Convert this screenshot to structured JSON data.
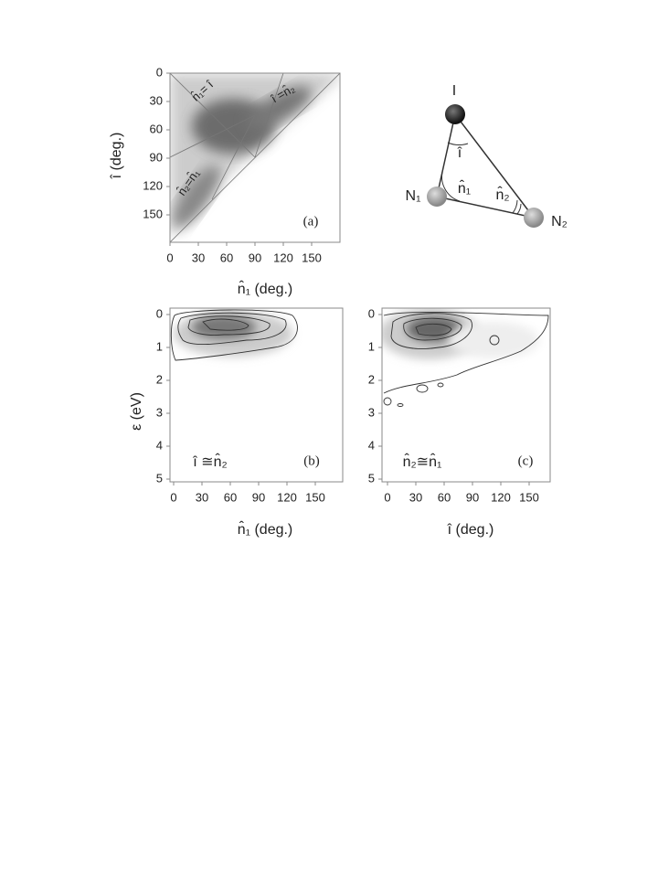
{
  "figure": {
    "panels": [
      {
        "label": "(a)",
        "xlabel": "n̂₁ (deg.)",
        "ylabel": "î (deg.)",
        "xticks": [
          0,
          30,
          60,
          90,
          120,
          150
        ],
        "yticks": [
          0,
          30,
          60,
          90,
          120,
          150
        ],
        "annotations": [
          "n̂₁= î",
          "î =n̂₂",
          "n̂₂=n̂₁"
        ]
      },
      {
        "label": "(b)",
        "xlabel": "n̂₁ (deg.)",
        "ylabel": "ε (eV)",
        "xticks": [
          0,
          30,
          60,
          90,
          120,
          150
        ],
        "yticks": [
          0,
          1,
          2,
          3,
          4,
          5
        ],
        "annotations": [
          "î ≅n̂₂"
        ]
      },
      {
        "label": "(c)",
        "xlabel": "î (deg.)",
        "xticks": [
          0,
          30,
          60,
          90,
          120,
          150
        ],
        "yticks": [
          0,
          1,
          2,
          3,
          4,
          5
        ],
        "annotations": [
          "n̂₂≅n̂₁"
        ]
      }
    ],
    "diagram": {
      "atoms": [
        "I",
        "N₁",
        "N₂"
      ],
      "angles": [
        "î",
        "n̂₁",
        "n̂₂"
      ]
    }
  }
}
